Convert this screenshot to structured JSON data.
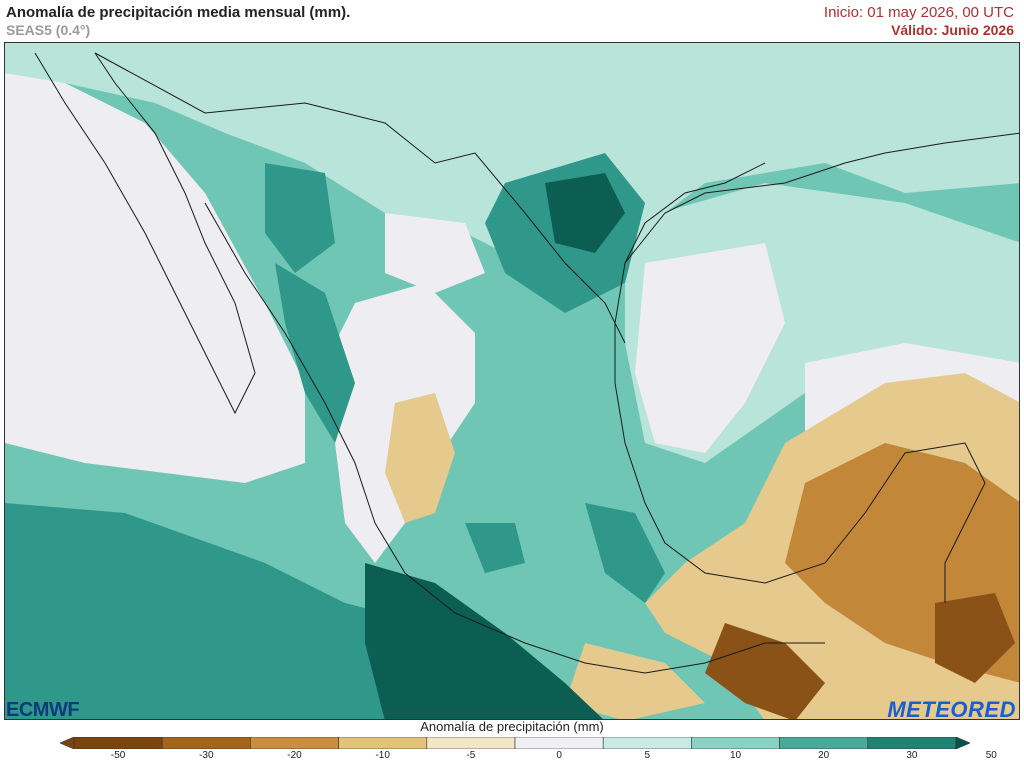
{
  "header": {
    "title": "Anomalía de precipitación media mensual (mm).",
    "model": "SEAS5 (0.4°)",
    "init": "Inicio: 01 may 2026, 00 UTC",
    "valid": "Válido: Junio 2026"
  },
  "logos": {
    "left": "ECMWF",
    "right": "METEORED"
  },
  "colorbar": {
    "title": "Anomalía de precipitación (mm)",
    "ticks": [
      "-50",
      "-30",
      "-20",
      "-10",
      "-5",
      "0",
      "5",
      "10",
      "20",
      "30",
      "50"
    ],
    "colors": [
      "#7a4410",
      "#a3641c",
      "#c98f3c",
      "#e3c27a",
      "#f3e6c4",
      "#f0f0f4",
      "#c8ebe3",
      "#8cd2c3",
      "#48ab9a",
      "#1f8272",
      "#05564a"
    ]
  },
  "map": {
    "colors": {
      "dry_strong": "#8a5216",
      "dry_moderate": "#c3873a",
      "dry_light": "#e6c98c",
      "neutral": "#eeeef2",
      "wet_light": "#b8e4da",
      "wet_moderate": "#6fc6b4",
      "wet_strong": "#2f988a",
      "wet_extreme": "#0c5e53"
    }
  }
}
